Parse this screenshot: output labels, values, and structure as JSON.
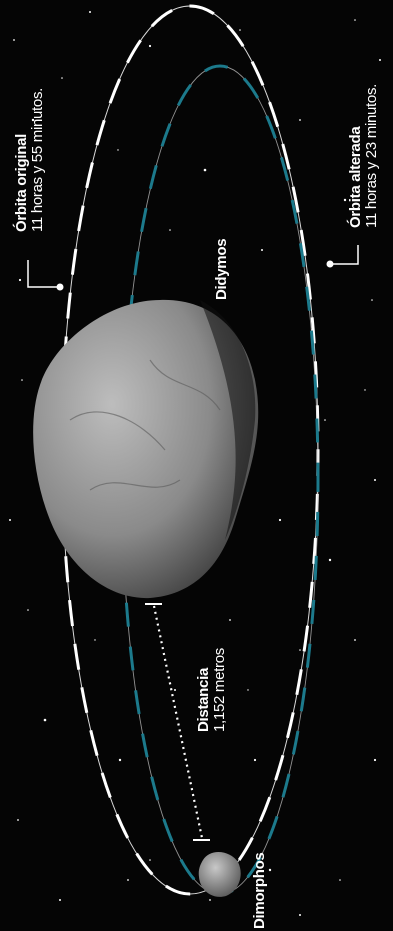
{
  "labels": {
    "orbita_original": {
      "title": "Órbita original",
      "sub": "11 horas y 55 minutos."
    },
    "orbita_alterada": {
      "title": "Órbita alterada",
      "sub": "11 horas y 23 minutos."
    },
    "didymos": "Didymos",
    "distancia": {
      "title": "Distancia",
      "sub": "1,152 metros"
    },
    "dimorphos": "Dimorphos"
  },
  "colors": {
    "background": "#050505",
    "original_orbit": "#ffffff",
    "altered_orbit": "#1c7a8c",
    "asteroid": "#8a8a8a"
  }
}
